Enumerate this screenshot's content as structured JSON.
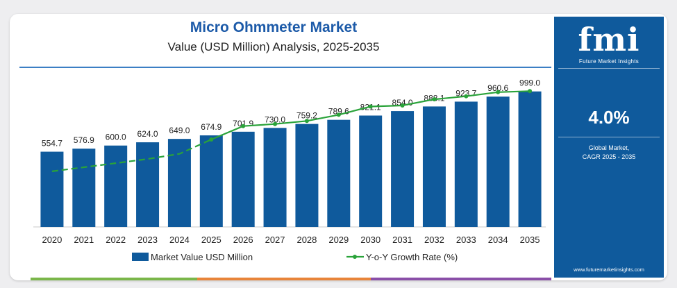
{
  "chart_data": {
    "type": "bar",
    "title": "Micro Ohmmeter Market",
    "subtitle": "Value (USD Million) Analysis, 2025-2035",
    "categories": [
      "2020",
      "2021",
      "2022",
      "2023",
      "2024",
      "2025",
      "2026",
      "2027",
      "2028",
      "2029",
      "2030",
      "2031",
      "2032",
      "2033",
      "2034",
      "2035"
    ],
    "series": [
      {
        "name": "Market Value USD Million",
        "type": "bar",
        "color": "#0f5a9c",
        "values": [
          554.7,
          576.9,
          600.0,
          624.0,
          649.0,
          674.9,
          701.9,
          730.0,
          759.2,
          789.6,
          821.1,
          854.0,
          888.1,
          923.7,
          960.6,
          999.0
        ],
        "labels": [
          "554.7",
          "576.9",
          "600.0",
          "624.0",
          "649.0",
          "674.9",
          "701.9",
          "730.0",
          "759.2",
          "789.6",
          "821.1",
          "854.0",
          "888.1",
          "923.7",
          "960.6",
          "999.0"
        ]
      },
      {
        "name": "Y-o-Y Growth Rate (%)",
        "type": "line",
        "color": "#2aa33a",
        "solid_from_index": 5,
        "values": [
          1.9,
          2.3,
          2.7,
          3.1,
          3.6,
          5.0,
          6.3,
          6.5,
          6.8,
          7.4,
          8.2,
          8.3,
          8.9,
          9.2,
          9.6,
          9.7
        ]
      }
    ],
    "ylim": [
      0,
      1100
    ],
    "y2lim": [
      -3.5,
      11
    ],
    "grid": false,
    "legend": "bottom-center"
  },
  "colors": {
    "accent": "#1c5aa8",
    "bar": "#0f5a9c",
    "line": "#2aa33a",
    "panel": "#0f5a9c",
    "footer": [
      "#7ab64a",
      "#e8843a",
      "#8a4fa8"
    ]
  },
  "sidebar": {
    "logo": "fmi",
    "logo_sub": "Future Market Insights",
    "cagr": "4.0%",
    "cagr_label_1": "Global Market,",
    "cagr_label_2": "CAGR 2025 - 2035",
    "website": "www.futuremarketinsights.com"
  }
}
